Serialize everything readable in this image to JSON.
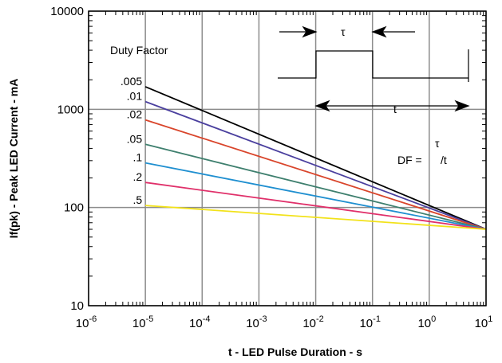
{
  "chart_data": {
    "type": "line",
    "xscale": "log",
    "yscale": "log",
    "xlim": [
      1e-06,
      10
    ],
    "ylim": [
      10,
      10000
    ],
    "grid": true,
    "xlabel": "t - LED Pulse Duration - s",
    "ylabel": "If(pk) - Peak LED Current - mA",
    "x_ticks": [
      {
        "value": 1e-06,
        "base": "10",
        "exp": "-6"
      },
      {
        "value": 1e-05,
        "base": "10",
        "exp": "-5"
      },
      {
        "value": 0.0001,
        "base": "10",
        "exp": "-4"
      },
      {
        "value": 0.001,
        "base": "10",
        "exp": "-3"
      },
      {
        "value": 0.01,
        "base": "10",
        "exp": "-2"
      },
      {
        "value": 0.1,
        "base": "10",
        "exp": "-1"
      },
      {
        "value": 1,
        "base": "10",
        "exp": "0"
      },
      {
        "value": 10,
        "base": "10",
        "exp": "1"
      }
    ],
    "y_ticks": [
      {
        "value": 10,
        "label": "10"
      },
      {
        "value": 100,
        "label": "100"
      },
      {
        "value": 1000,
        "label": "1000"
      },
      {
        "value": 10000,
        "label": "10000"
      }
    ],
    "legend_title": "Duty Factor",
    "series": [
      {
        "name": ".005",
        "color": "#000000",
        "x": [
          1e-05,
          10
        ],
        "y": [
          1700,
          60
        ]
      },
      {
        "name": ".01",
        "color": "#4a3f9e",
        "x": [
          1e-05,
          10
        ],
        "y": [
          1200,
          60
        ]
      },
      {
        "name": ".02",
        "color": "#d9452b",
        "x": [
          1e-05,
          10
        ],
        "y": [
          780,
          60
        ]
      },
      {
        "name": ".05",
        "color": "#3e7f6e",
        "x": [
          1e-05,
          10
        ],
        "y": [
          440,
          60
        ]
      },
      {
        "name": ".1",
        "color": "#1f8fd0",
        "x": [
          1e-05,
          10
        ],
        "y": [
          285,
          60
        ]
      },
      {
        "name": ".2",
        "color": "#e0306a",
        "x": [
          1e-05,
          10
        ],
        "y": [
          180,
          60
        ]
      },
      {
        "name": ".5",
        "color": "#f2e21a",
        "x": [
          1e-05,
          10
        ],
        "y": [
          105,
          60
        ]
      }
    ],
    "annotations": {
      "tau": "τ",
      "t": "t",
      "df_prefix": "DF  =",
      "df_tau": "τ",
      "df_suffix": "/t"
    }
  }
}
